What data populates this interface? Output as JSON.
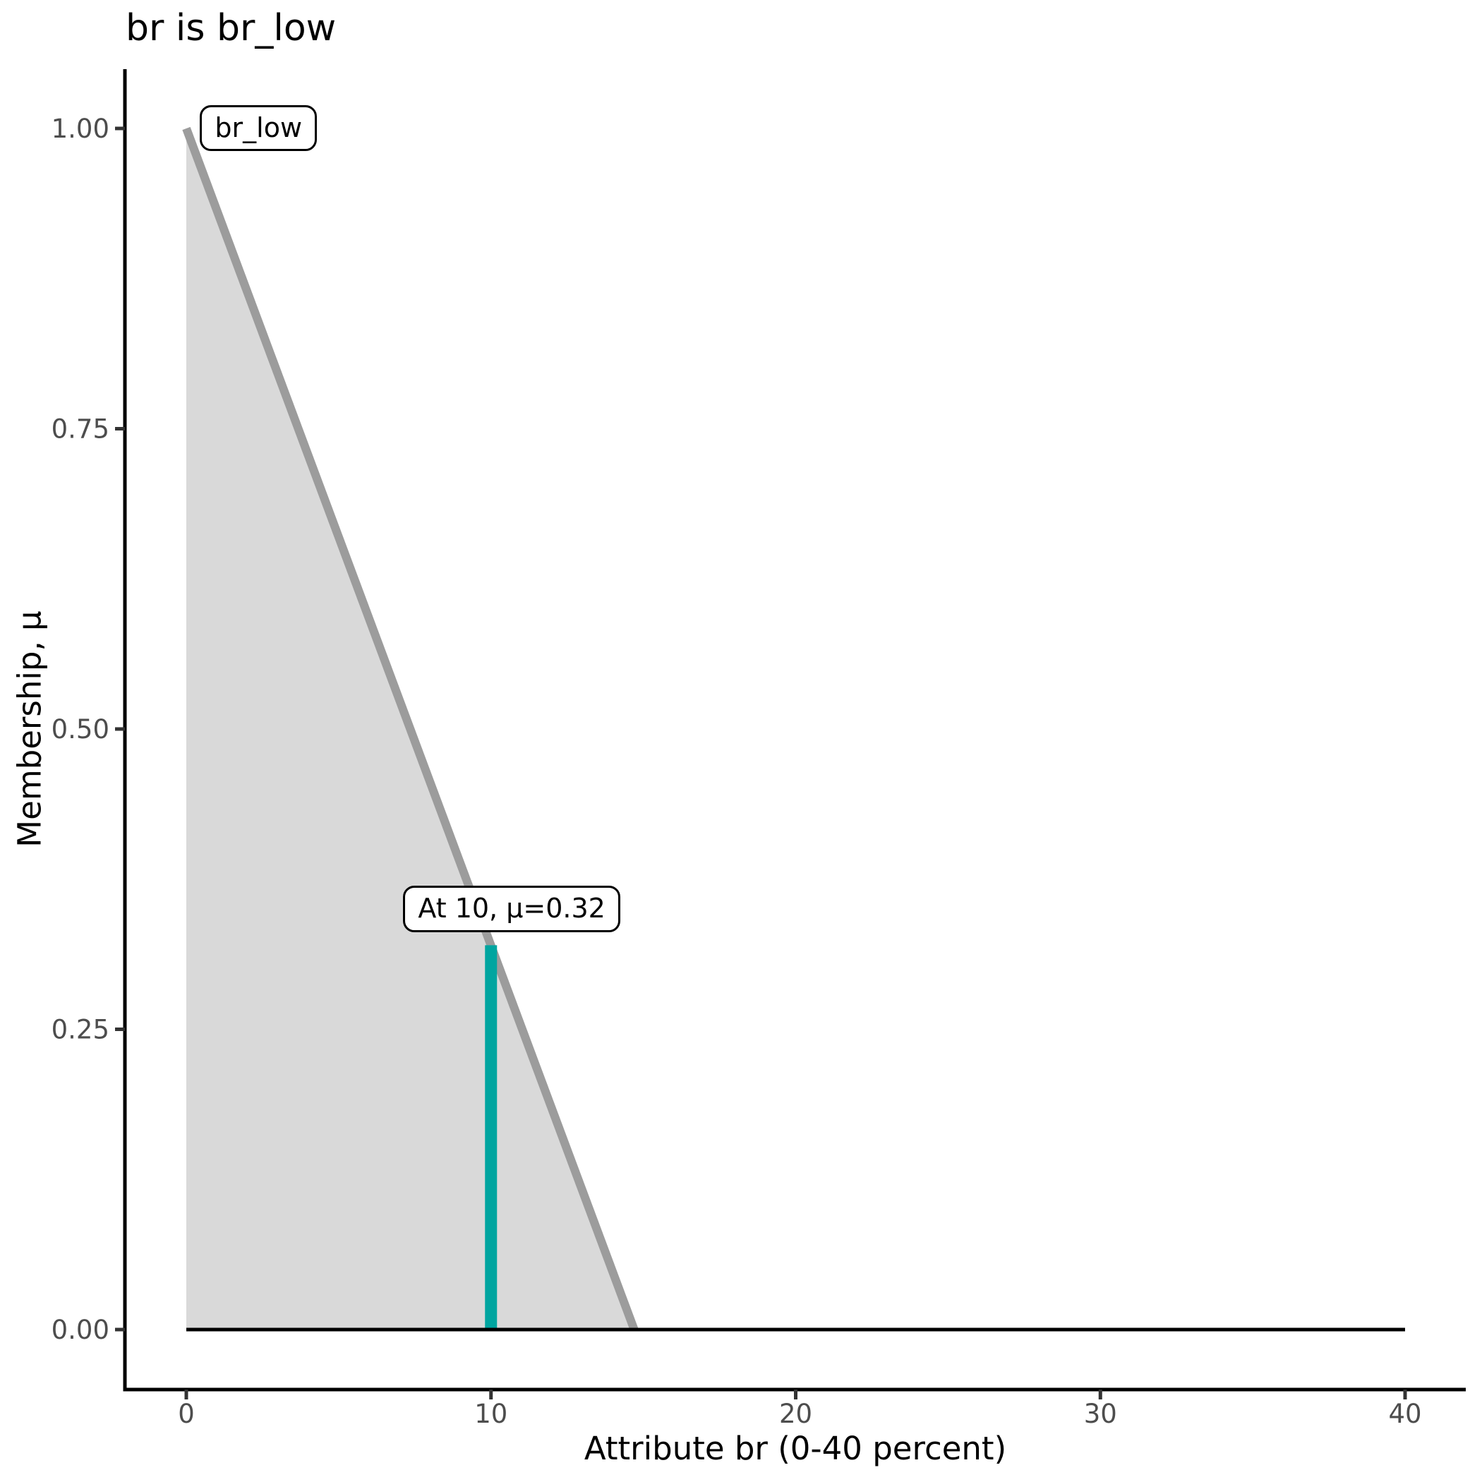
{
  "title": "br is br_low",
  "axes": {
    "x": {
      "label": "Attribute br (0-40 percent)",
      "tick_values": [
        0,
        10,
        20,
        30,
        40
      ],
      "tick_labels": [
        "0",
        "10",
        "20",
        "30",
        "40"
      ],
      "range": [
        0,
        40
      ]
    },
    "y": {
      "label": "Membership, μ",
      "tick_values": [
        0,
        0.25,
        0.5,
        0.75,
        1
      ],
      "tick_labels": [
        "0.00",
        "0.25",
        "0.50",
        "0.75",
        "1.00"
      ],
      "range": [
        0,
        1
      ]
    }
  },
  "colors": {
    "membership_line": "#9C9C9C",
    "membership_fill": "#D9D9D9",
    "input_line": "#00A5A0",
    "baseline": "#000000",
    "axis": "#000000",
    "tick_mark": "#333333",
    "tick_label": "#4D4D4D"
  },
  "chart_data": {
    "type": "area",
    "title": "br is br_low",
    "xlabel": "Attribute br (0-40 percent)",
    "ylabel": "Membership, μ",
    "xlim": [
      0,
      40
    ],
    "ylim": [
      0,
      1
    ],
    "grid": false,
    "legend": false,
    "series": [
      {
        "name": "br_low membership function",
        "type": "line-area",
        "color": "#9C9C9C",
        "fill": "#D9D9D9",
        "points": [
          [
            0,
            1.0
          ],
          [
            14.7,
            0
          ]
        ]
      },
      {
        "name": "input evaluation at br=10",
        "type": "segment",
        "color": "#00A5A0",
        "points": [
          [
            10,
            0
          ],
          [
            10,
            0.32
          ]
        ]
      },
      {
        "name": "zero membership baseline",
        "type": "line",
        "color": "#000000",
        "points": [
          [
            0,
            0
          ],
          [
            40,
            0
          ]
        ]
      }
    ],
    "annotations": [
      {
        "text": "br_low",
        "x": 0.45,
        "y": 1.0
      },
      {
        "text": "At 10, μ=0.32",
        "x": 7.12,
        "y": 0.35
      }
    ]
  }
}
